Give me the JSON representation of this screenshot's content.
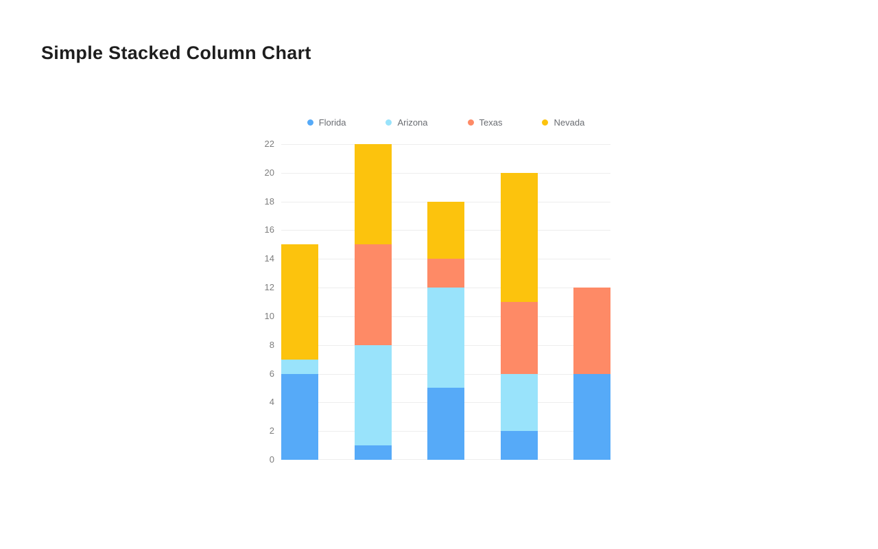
{
  "page": {
    "title": "Simple Stacked Column Chart"
  },
  "colors": {
    "background": "#ffffff",
    "title_text": "#1e1e1e",
    "gridline": "#ededed",
    "tick_label_text": "#7d7d7d",
    "legend_label_text": "#696c71"
  },
  "chart_data": {
    "type": "bar",
    "stacked": true,
    "title": "Simple Stacked Column Chart",
    "xlabel": "",
    "ylabel": "",
    "categories": [
      "",
      "",
      "",
      "",
      ""
    ],
    "series": [
      {
        "name": "Florida",
        "color": "#56AAF8",
        "values": [
          6,
          1,
          5,
          2,
          6
        ]
      },
      {
        "name": "Arizona",
        "color": "#99E3FB",
        "values": [
          1,
          7,
          7,
          4,
          0
        ]
      },
      {
        "name": "Texas",
        "color": "#FE8A66",
        "values": [
          0,
          7,
          2,
          5,
          6
        ]
      },
      {
        "name": "Nevada",
        "color": "#FCC30D",
        "values": [
          8,
          7,
          4,
          9,
          0
        ]
      }
    ],
    "stack_totals": [
      15,
      22,
      18,
      20,
      12
    ],
    "ylim": [
      0,
      22
    ],
    "y_tick_step": 2,
    "y_ticks": [
      0,
      2,
      4,
      6,
      8,
      10,
      12,
      14,
      16,
      18,
      20,
      22
    ],
    "grid": true,
    "legend_position": "top",
    "x_axis_labels_visible": false
  }
}
